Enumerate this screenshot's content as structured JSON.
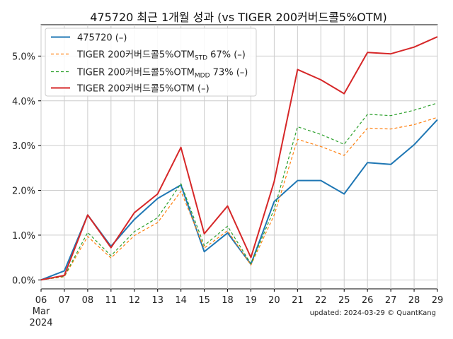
{
  "chart_data": {
    "type": "line",
    "title": "475720 최근 1개월 성과 (vs TIGER 200커버드콜5%OTM)",
    "xlabel": "",
    "ylabel": "",
    "categories": [
      "06",
      "07",
      "08",
      "11",
      "12",
      "13",
      "14",
      "15",
      "18",
      "19",
      "20",
      "21",
      "22",
      "25",
      "26",
      "27",
      "28",
      "29"
    ],
    "x_sub_labels": [
      "Mar",
      "2024"
    ],
    "ylim": [
      -0.2,
      5.7
    ],
    "yticks": [
      0.0,
      1.0,
      2.0,
      3.0,
      4.0,
      5.0
    ],
    "ytick_labels": [
      "0.0%",
      "1.0%",
      "2.0%",
      "3.0%",
      "4.0%",
      "5.0%"
    ],
    "grid": true,
    "legend_position": "top-left",
    "series": [
      {
        "name": "475720 (–)",
        "color": "#1f77b4",
        "style": "solid",
        "values": [
          0.0,
          0.2,
          1.45,
          0.75,
          1.35,
          1.82,
          2.12,
          0.63,
          1.05,
          0.35,
          1.75,
          2.22,
          2.22,
          1.92,
          2.62,
          2.58,
          3.02,
          3.58
        ]
      },
      {
        "name_main": "TIGER 200커버드콜5%OTM",
        "name_sub": "STD",
        "name_tail": " 67% (–)",
        "color": "#ff7f0e",
        "style": "dashed",
        "values": [
          0.0,
          0.07,
          0.97,
          0.49,
          0.99,
          1.28,
          1.98,
          0.71,
          1.1,
          0.33,
          1.45,
          3.14,
          2.98,
          2.78,
          3.39,
          3.37,
          3.47,
          3.63
        ]
      },
      {
        "name_main": "TIGER 200커버드콜5%OTM",
        "name_sub": "MDD",
        "name_tail": " 73% (–)",
        "color": "#2ca02c",
        "style": "dashed",
        "values": [
          0.0,
          0.08,
          1.06,
          0.54,
          1.08,
          1.39,
          2.15,
          0.77,
          1.2,
          0.36,
          1.58,
          3.42,
          3.25,
          3.03,
          3.7,
          3.67,
          3.79,
          3.95
        ]
      },
      {
        "name": "TIGER 200커버드콜5%OTM (–)",
        "color": "#d62728",
        "style": "solid",
        "values": [
          0.0,
          0.1,
          1.45,
          0.72,
          1.5,
          1.92,
          2.96,
          1.03,
          1.65,
          0.5,
          2.2,
          4.7,
          4.47,
          4.16,
          5.08,
          5.05,
          5.2,
          5.43
        ]
      }
    ]
  },
  "footer": {
    "updated_text": "updated: 2024-03-29 © QuantKang"
  }
}
